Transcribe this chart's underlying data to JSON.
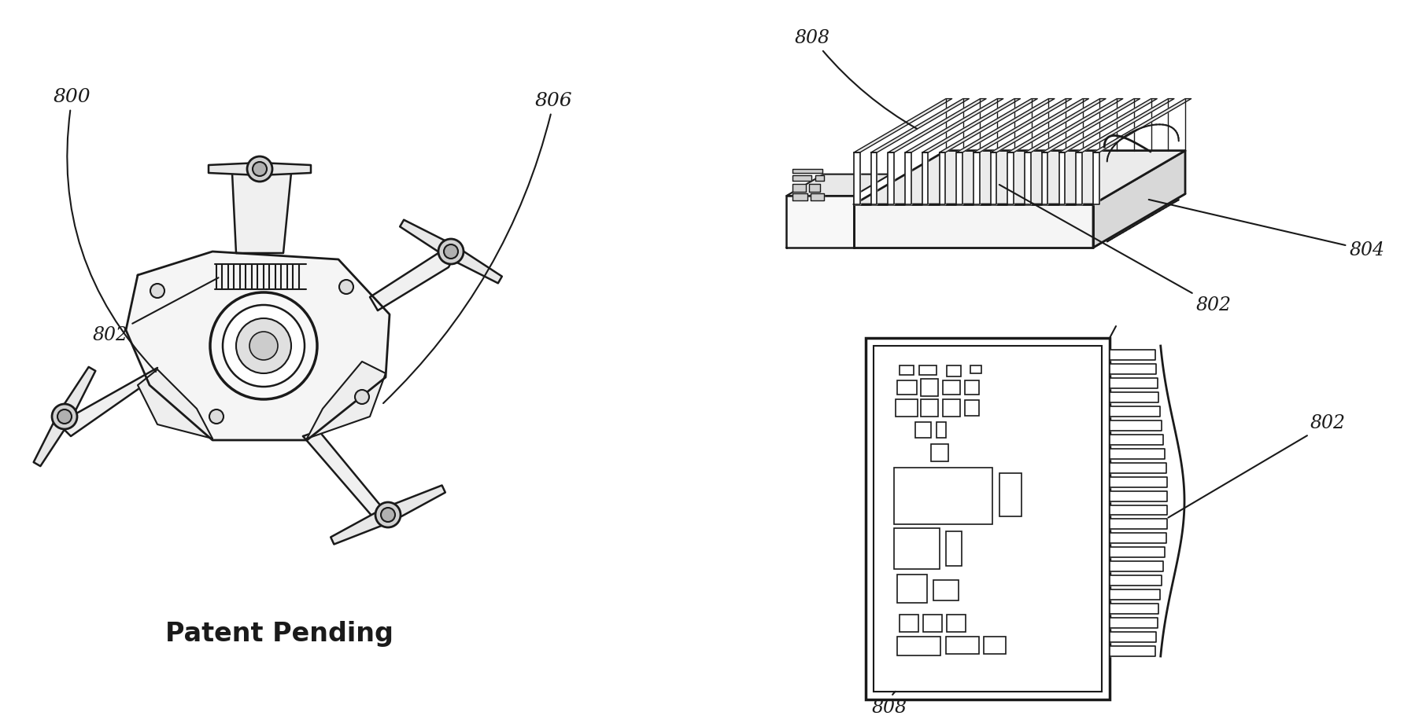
{
  "background_color": "#ffffff",
  "line_color": "#1a1a1a",
  "line_width": 1.5,
  "patent_text": "Patent Pending",
  "patent_fontsize": 24,
  "label_fontsize": 17,
  "fig_width": 17.99,
  "fig_height": 9.25,
  "dpi": 100
}
